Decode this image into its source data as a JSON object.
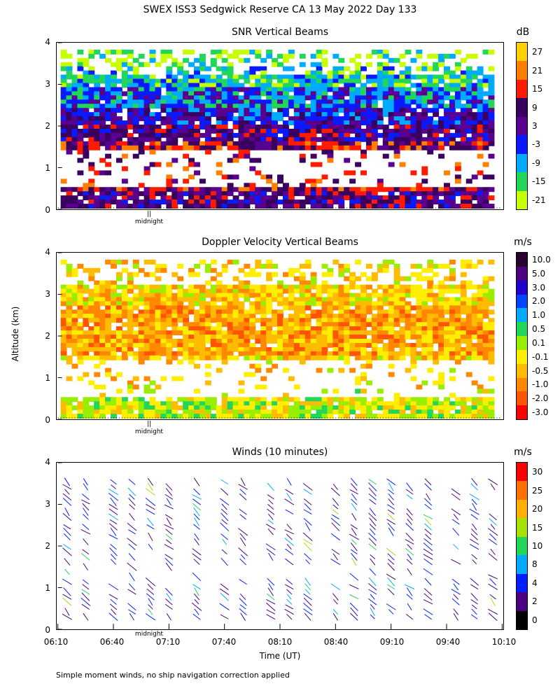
{
  "main_title": "SWEX ISS3 Sedgwick Reserve CA  13 May 2022 Day 133",
  "ylabel": "Altitude (km)",
  "xlabel": "Time (UT)",
  "midnight_label": "midnight",
  "midnight_marker": "||",
  "footnote": "Simple moment winds, no ship navigation correction applied",
  "chart_data": [
    {
      "type": "heatmap",
      "title": "SNR Vertical Beams",
      "colorbar_unit": "dB",
      "ylim": [
        0,
        4
      ],
      "y_ticks": [
        "0",
        "1",
        "2",
        "3",
        "4"
      ],
      "x_range": [
        "06:10",
        "10:10"
      ],
      "colorbar_labels": [
        "27",
        "21",
        "15",
        "9",
        "3",
        "-3",
        "-9",
        "-15",
        "-21"
      ],
      "colorbar_colors": [
        "#ffd000",
        "#ff7f00",
        "#ff1a00",
        "#3a0060",
        "#5a0090",
        "#0a1aff",
        "#00aaff",
        "#22d65a",
        "#c8ff00"
      ],
      "profile": [
        {
          "alt": 3.8,
          "level": "-21"
        },
        {
          "alt": 3.2,
          "level": "-15"
        },
        {
          "alt": 2.7,
          "level": "-9"
        },
        {
          "alt": 2.3,
          "level": "-3"
        },
        {
          "alt": 1.8,
          "level": "3"
        },
        {
          "alt": 1.5,
          "level": "9"
        },
        {
          "alt": 0.6,
          "level": "9"
        },
        {
          "alt": 0.3,
          "level": "3"
        }
      ]
    },
    {
      "type": "heatmap",
      "title": "Doppler Velocity Vertical Beams",
      "colorbar_unit": "m/s",
      "ylim": [
        0,
        4
      ],
      "y_ticks": [
        "0",
        "1",
        "2",
        "3",
        "4"
      ],
      "x_range": [
        "06:10",
        "10:10"
      ],
      "colorbar_labels": [
        "10.0",
        "5.0",
        "3.0",
        "2.0",
        "1.0",
        "0.5",
        "0.1",
        "-0.1",
        "-0.5",
        "-1.0",
        "-2.0",
        "-3.0"
      ],
      "colorbar_colors": [
        "#2a0030",
        "#4a0080",
        "#2200cc",
        "#0044ff",
        "#00aaff",
        "#22d65a",
        "#99ee00",
        "#ffee00",
        "#ffbb00",
        "#ff8800",
        "#ff5500",
        "#ff0000"
      ],
      "profile": [
        {
          "alt": 3.0,
          "level": "-0.5"
        },
        {
          "alt": 2.5,
          "level": "-1.0"
        },
        {
          "alt": 2.0,
          "level": "-1.0"
        },
        {
          "alt": 1.2,
          "level": "-0.5"
        },
        {
          "alt": 0.3,
          "level": "-0.1"
        }
      ]
    },
    {
      "type": "scatter",
      "title": "Winds (10 minutes)",
      "colorbar_unit": "m/s",
      "ylim": [
        0,
        4
      ],
      "y_ticks": [
        "0",
        "1",
        "2",
        "3",
        "4"
      ],
      "x_ticks": [
        "06:10",
        "06:40",
        "07:10",
        "07:40",
        "08:10",
        "08:40",
        "09:10",
        "09:40",
        "10:10"
      ],
      "colorbar_labels": [
        "30",
        "25",
        "20",
        "15",
        "10",
        "8",
        "4",
        "2",
        "0"
      ],
      "colorbar_colors": [
        "#ff0000",
        "#ff7000",
        "#ffb000",
        "#a8e000",
        "#22d65a",
        "#00aaff",
        "#0020ff",
        "#4a0080",
        "#000000"
      ],
      "wind_times": [
        "06:15",
        "06:25",
        "06:40",
        "06:50",
        "07:00",
        "07:10",
        "07:25",
        "07:40",
        "07:50",
        "08:05",
        "08:15",
        "08:25",
        "08:40",
        "08:50",
        "09:00",
        "09:10",
        "09:20",
        "09:30",
        "09:45",
        "09:55",
        "10:05"
      ],
      "wind_alt_range": [
        0.3,
        3.6
      ]
    }
  ]
}
